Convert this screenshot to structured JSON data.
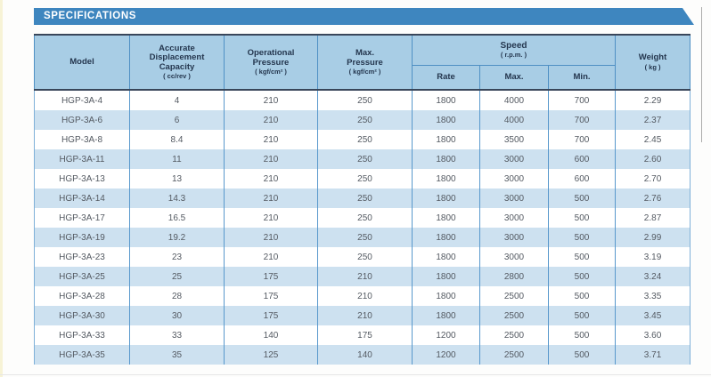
{
  "banner": {
    "title": "SPECIFICATIONS"
  },
  "colors": {
    "banner_blue": "#3e86bf",
    "header_bg": "#a8cde5",
    "row_alt_blue": "#cde1f0",
    "grid_blue": "#5898cc",
    "header_border_dark": "#39465a"
  },
  "table": {
    "headers": {
      "model": "Model",
      "capacity": {
        "l1": "Accurate",
        "l2": "Displacement",
        "l3": "Capacity",
        "unit": "( cc/rev )"
      },
      "operational_pressure": {
        "l1": "Operational",
        "l2": "Pressure",
        "unit": "( kgf/cm² )"
      },
      "max_pressure": {
        "l1": "Max.",
        "l2": "Pressure",
        "unit": "( kgf/cm² )"
      },
      "speed": {
        "title": "Speed",
        "unit": "( r.p.m. )",
        "rate": "Rate",
        "max": "Max.",
        "min": "Min."
      },
      "weight": {
        "l1": "Weight",
        "unit": "( kg )"
      }
    },
    "columns": [
      "model",
      "displacement-capacity",
      "operational-pressure",
      "max-pressure",
      "speed-rate",
      "speed-max",
      "speed-min",
      "weight"
    ],
    "rows": [
      [
        "HGP-3A-4",
        "4",
        "210",
        "250",
        "1800",
        "4000",
        "700",
        "2.29"
      ],
      [
        "HGP-3A-6",
        "6",
        "210",
        "250",
        "1800",
        "4000",
        "700",
        "2.37"
      ],
      [
        "HGP-3A-8",
        "8.4",
        "210",
        "250",
        "1800",
        "3500",
        "700",
        "2.45"
      ],
      [
        "HGP-3A-11",
        "11",
        "210",
        "250",
        "1800",
        "3000",
        "600",
        "2.60"
      ],
      [
        "HGP-3A-13",
        "13",
        "210",
        "250",
        "1800",
        "3000",
        "600",
        "2.70"
      ],
      [
        "HGP-3A-14",
        "14.3",
        "210",
        "250",
        "1800",
        "3000",
        "500",
        "2.76"
      ],
      [
        "HGP-3A-17",
        "16.5",
        "210",
        "250",
        "1800",
        "3000",
        "500",
        "2.87"
      ],
      [
        "HGP-3A-19",
        "19.2",
        "210",
        "250",
        "1800",
        "3000",
        "500",
        "2.99"
      ],
      [
        "HGP-3A-23",
        "23",
        "210",
        "250",
        "1800",
        "3000",
        "500",
        "3.19"
      ],
      [
        "HGP-3A-25",
        "25",
        "175",
        "210",
        "1800",
        "2800",
        "500",
        "3.24"
      ],
      [
        "HGP-3A-28",
        "28",
        "175",
        "210",
        "1800",
        "2500",
        "500",
        "3.35"
      ],
      [
        "HGP-3A-30",
        "30",
        "175",
        "210",
        "1800",
        "2500",
        "500",
        "3.45"
      ],
      [
        "HGP-3A-33",
        "33",
        "140",
        "175",
        "1200",
        "2500",
        "500",
        "3.60"
      ],
      [
        "HGP-3A-35",
        "35",
        "125",
        "140",
        "1200",
        "2500",
        "500",
        "3.71"
      ]
    ]
  }
}
